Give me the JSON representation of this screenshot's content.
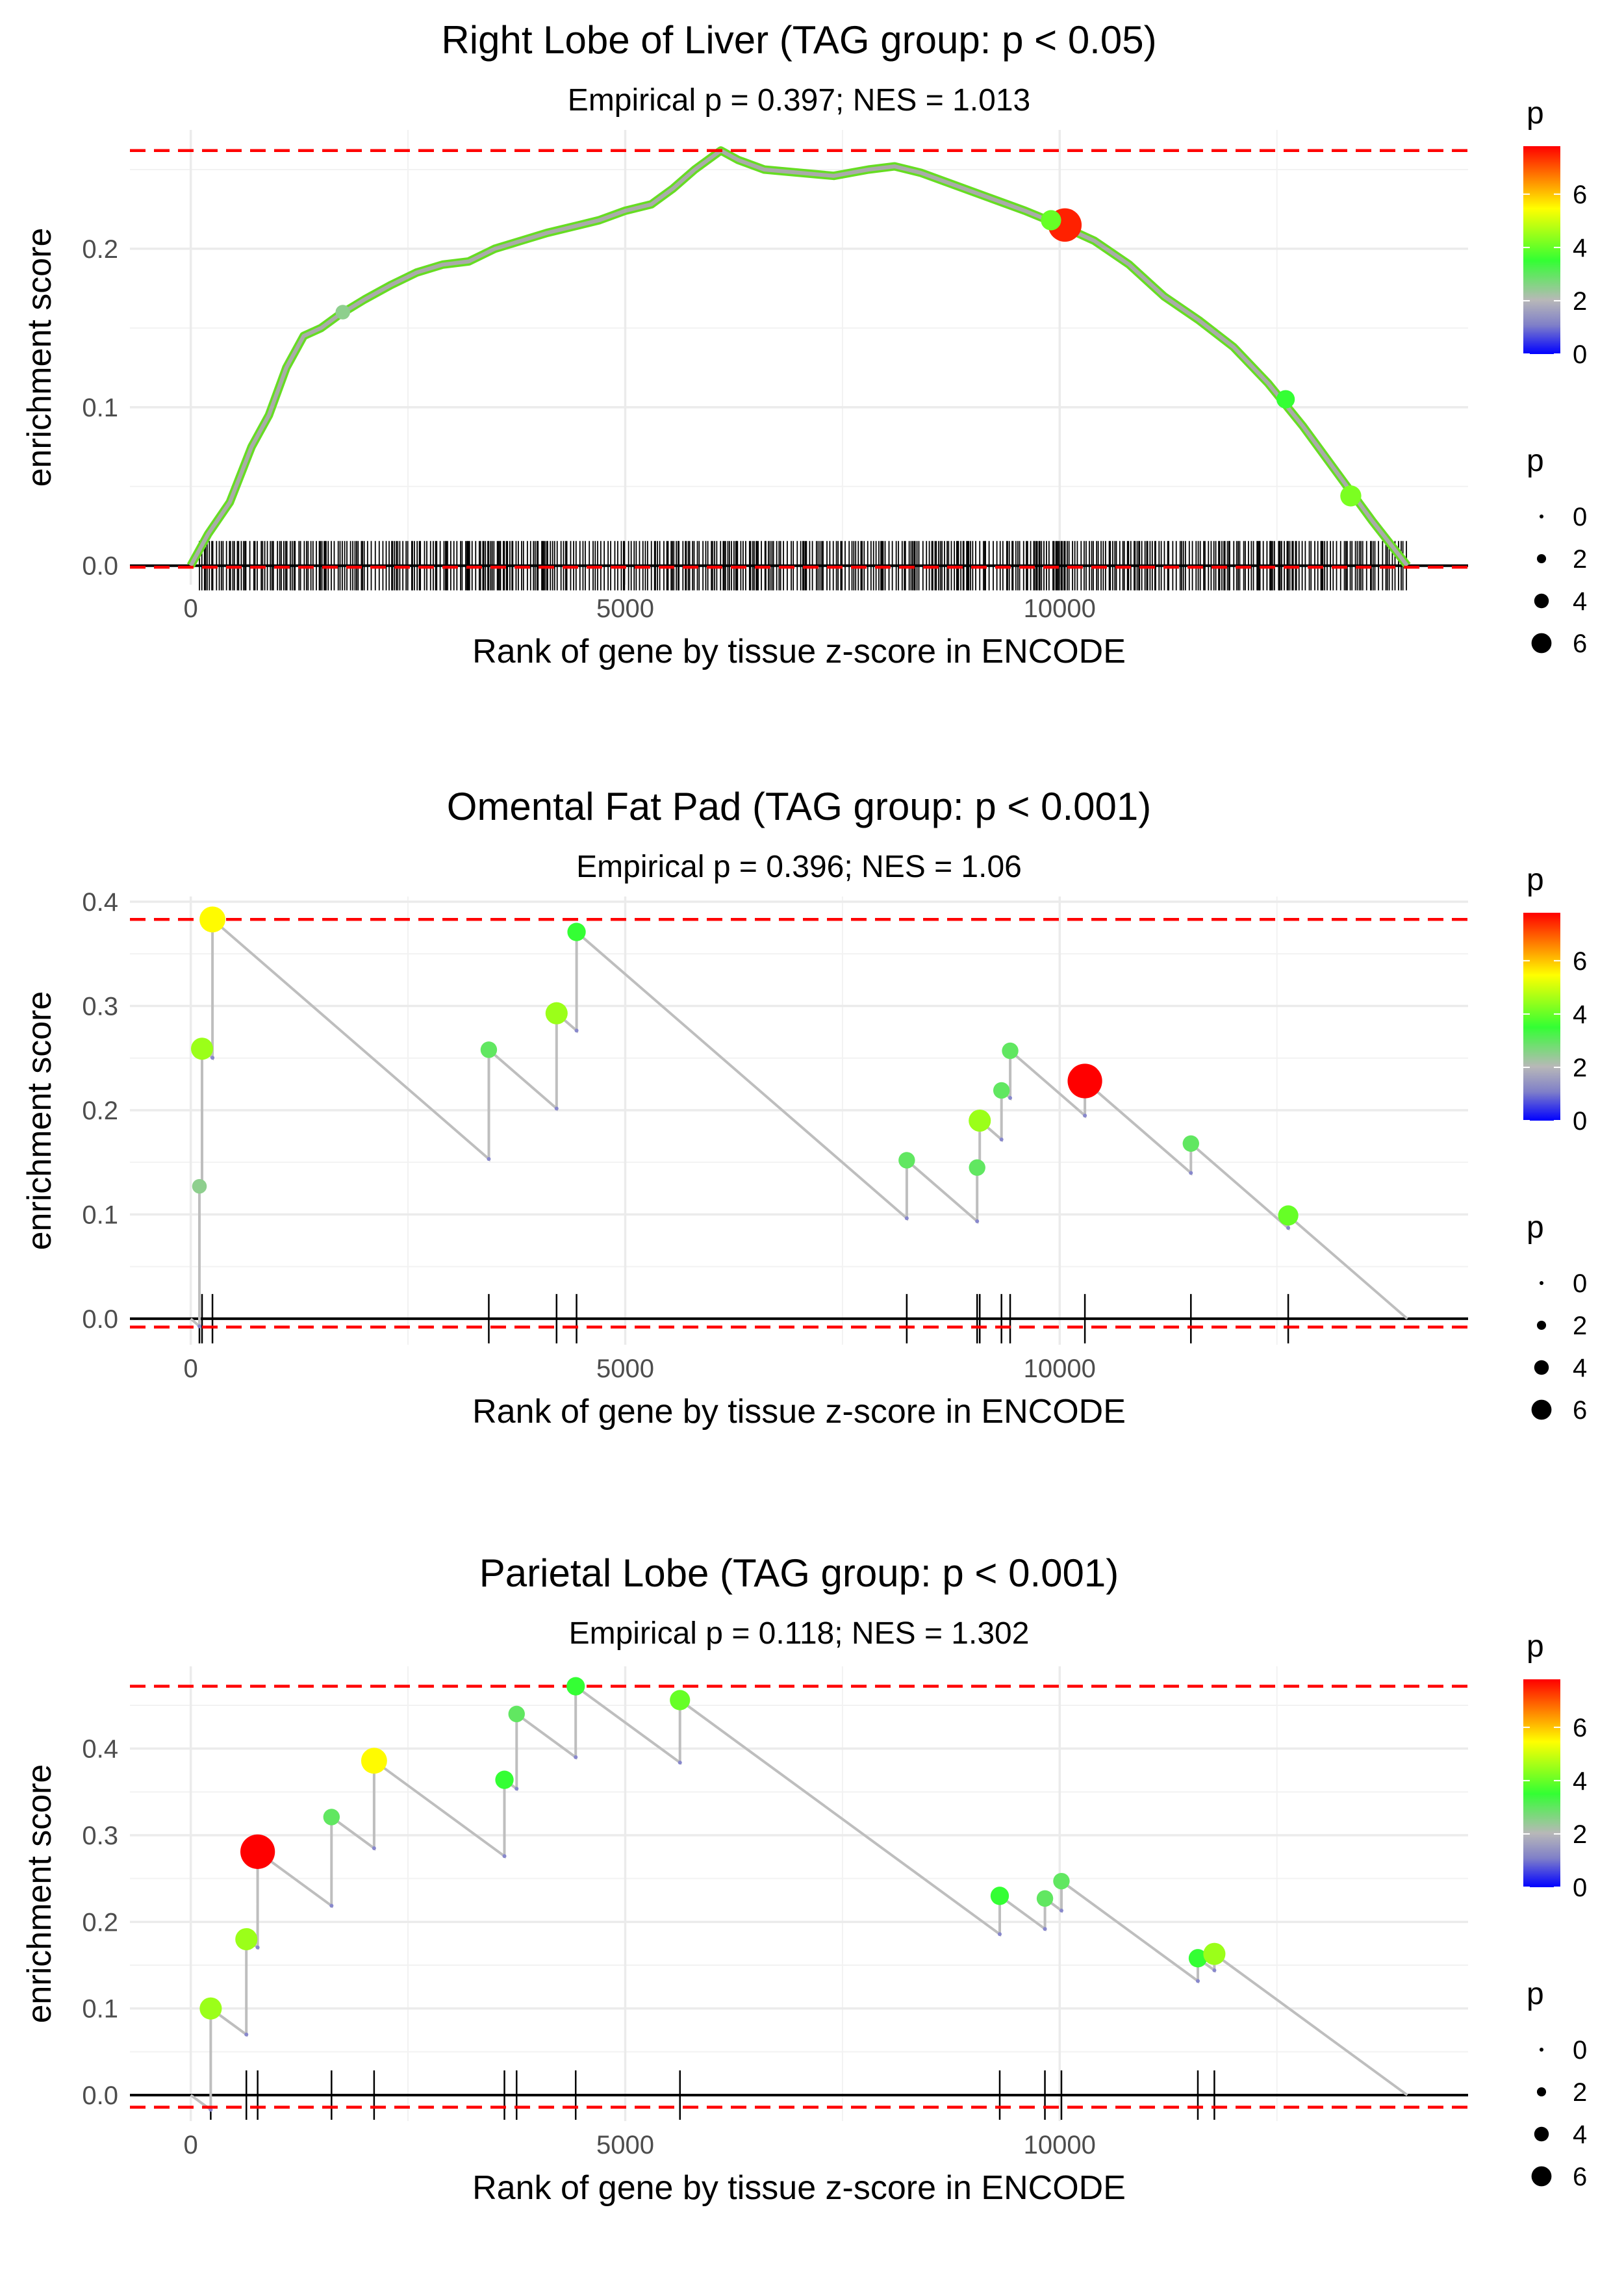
{
  "chart_data": [
    {
      "type": "line",
      "title": "Right Lobe of Liver (TAG group: p < 0.05)",
      "subtitle": "Empirical p = 0.397; NES = 1.013",
      "xlabel": "Rank of gene by tissue z-score in ENCODE",
      "ylabel": "enrichment score",
      "xlim": [
        -700,
        14700
      ],
      "ylim": [
        -0.012,
        0.275
      ],
      "x_ticks": [
        0,
        5000,
        10000
      ],
      "x_tick_labels": [
        "0",
        "5000",
        "10000"
      ],
      "y_ticks": [
        0.0,
        0.1,
        0.2
      ],
      "y_tick_labels": [
        "0.0",
        "0.1",
        "0.2"
      ],
      "ref_lines": [
        0.262,
        -0.001
      ],
      "n_genes": 14000,
      "dense_rug": true,
      "rug_start": 100,
      "rug_end": 14000,
      "line_points": [
        [
          0,
          0
        ],
        [
          200,
          0.02
        ],
        [
          450,
          0.04
        ],
        [
          700,
          0.075
        ],
        [
          900,
          0.095
        ],
        [
          1100,
          0.125
        ],
        [
          1300,
          0.145
        ],
        [
          1500,
          0.15
        ],
        [
          1700,
          0.158
        ],
        [
          2000,
          0.168
        ],
        [
          2300,
          0.177
        ],
        [
          2600,
          0.185
        ],
        [
          2900,
          0.19
        ],
        [
          3200,
          0.192
        ],
        [
          3500,
          0.2
        ],
        [
          3800,
          0.205
        ],
        [
          4100,
          0.21
        ],
        [
          4400,
          0.214
        ],
        [
          4700,
          0.218
        ],
        [
          5000,
          0.224
        ],
        [
          5300,
          0.228
        ],
        [
          5550,
          0.238
        ],
        [
          5800,
          0.25
        ],
        [
          6000,
          0.258
        ],
        [
          6100,
          0.262
        ],
        [
          6300,
          0.256
        ],
        [
          6600,
          0.25
        ],
        [
          7000,
          0.248
        ],
        [
          7400,
          0.246
        ],
        [
          7800,
          0.25
        ],
        [
          8100,
          0.252
        ],
        [
          8400,
          0.248
        ],
        [
          8800,
          0.24
        ],
        [
          9200,
          0.232
        ],
        [
          9600,
          0.224
        ],
        [
          10000,
          0.215
        ],
        [
          10400,
          0.205
        ],
        [
          10800,
          0.19
        ],
        [
          11200,
          0.17
        ],
        [
          11600,
          0.155
        ],
        [
          12000,
          0.138
        ],
        [
          12400,
          0.115
        ],
        [
          12800,
          0.088
        ],
        [
          13200,
          0.058
        ],
        [
          13600,
          0.028
        ],
        [
          14000,
          0.0
        ]
      ],
      "points": [
        [
          1750,
          0.16,
          2.5
        ],
        [
          10060,
          0.215,
          7.5
        ],
        [
          12600,
          0.105,
          3.5
        ],
        [
          13350,
          0.044,
          4.2
        ],
        [
          9900,
          0.218,
          4.0
        ]
      ],
      "legend": {
        "title": "p",
        "color_ticks": [
          "0",
          "2",
          "4",
          "6"
        ],
        "size_ticks": [
          "0",
          "2",
          "4",
          "6"
        ],
        "max": 7.8
      }
    },
    {
      "type": "line",
      "title": "Omental Fat Pad (TAG group: p < 0.001)",
      "subtitle": "Empirical p = 0.396; NES = 1.06",
      "xlabel": "Rank of gene by tissue z-score in ENCODE",
      "ylabel": "enrichment score",
      "xlim": [
        -700,
        14700
      ],
      "ylim": [
        -0.025,
        0.405
      ],
      "x_ticks": [
        0,
        5000,
        10000
      ],
      "x_tick_labels": [
        "0",
        "5000",
        "10000"
      ],
      "y_ticks": [
        0.0,
        0.1,
        0.2,
        0.3,
        0.4
      ],
      "y_tick_labels": [
        "0.0",
        "0.1",
        "0.2",
        "0.3",
        "0.4"
      ],
      "ref_lines": [
        0.383,
        -0.008
      ],
      "n_genes": 14000,
      "hits": [
        [
          100,
          0.127,
          2.5
        ],
        [
          130,
          0.259,
          4.5
        ],
        [
          250,
          0.383,
          5.5
        ],
        [
          3430,
          0.258,
          3.0
        ],
        [
          4210,
          0.293,
          4.5
        ],
        [
          4440,
          0.371,
          3.5
        ],
        [
          8240,
          0.152,
          3.0
        ],
        [
          9050,
          0.145,
          3.0
        ],
        [
          9080,
          0.19,
          4.5
        ],
        [
          9330,
          0.219,
          3.0
        ],
        [
          9430,
          0.257,
          3.0
        ],
        [
          10290,
          0.228,
          7.8
        ],
        [
          11510,
          0.168,
          3.0
        ],
        [
          12630,
          0.099,
          4.0
        ]
      ],
      "legend": {
        "title": "p",
        "color_ticks": [
          "0",
          "2",
          "4",
          "6"
        ],
        "size_ticks": [
          "0",
          "2",
          "4",
          "6"
        ],
        "max": 7.8
      }
    },
    {
      "type": "line",
      "title": "Parietal Lobe (TAG group: p < 0.001)",
      "subtitle": "Empirical p = 0.118; NES = 1.302",
      "xlabel": "Rank of gene by tissue z-score in ENCODE",
      "ylabel": "enrichment score",
      "xlim": [
        -700,
        14700
      ],
      "ylim": [
        -0.03,
        0.495
      ],
      "x_ticks": [
        0,
        5000,
        10000
      ],
      "x_tick_labels": [
        "0",
        "5000",
        "10000"
      ],
      "y_ticks": [
        0.0,
        0.1,
        0.2,
        0.3,
        0.4
      ],
      "y_tick_labels": [
        "0.0",
        "0.1",
        "0.2",
        "0.3",
        "0.4"
      ],
      "ref_lines": [
        0.472,
        -0.014
      ],
      "n_genes": 14000,
      "hits": [
        [
          230,
          0.1,
          4.5
        ],
        [
          640,
          0.18,
          4.5
        ],
        [
          770,
          0.281,
          7.8
        ],
        [
          1620,
          0.321,
          3.0
        ],
        [
          2110,
          0.386,
          5.5
        ],
        [
          3610,
          0.364,
          3.5
        ],
        [
          3750,
          0.44,
          3.0
        ],
        [
          4430,
          0.472,
          3.5
        ],
        [
          5630,
          0.456,
          4.0
        ],
        [
          9310,
          0.23,
          3.5
        ],
        [
          9830,
          0.227,
          3.0
        ],
        [
          10020,
          0.247,
          3.0
        ],
        [
          11590,
          0.158,
          3.5
        ],
        [
          11780,
          0.163,
          4.5
        ]
      ],
      "legend": {
        "title": "p",
        "color_ticks": [
          "0",
          "2",
          "4",
          "6"
        ],
        "size_ticks": [
          "0",
          "2",
          "4",
          "6"
        ],
        "max": 7.8
      }
    }
  ]
}
